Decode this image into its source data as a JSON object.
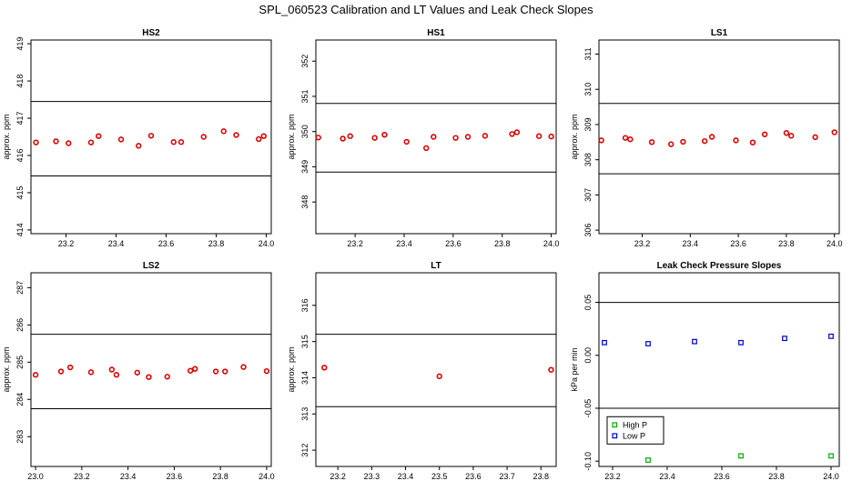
{
  "figure_title": "SPL_060523  Calibration and LT Values and Leak Check Slopes",
  "chart_data": [
    {
      "type": "scatter",
      "title": "HS2",
      "ylabel": "approx. ppm",
      "xlim": [
        23.06,
        24.02
      ],
      "ylim": [
        413.9,
        419.1
      ],
      "xticks": [
        "23.2",
        "23.4",
        "23.6",
        "23.8",
        "24.0"
      ],
      "yticks": [
        "414",
        "415",
        "416",
        "417",
        "418",
        "419"
      ],
      "hlines": [
        417.45,
        415.45
      ],
      "series": [
        {
          "name": "values",
          "color": "#dd0000",
          "x": [
            23.08,
            23.16,
            23.21,
            23.3,
            23.33,
            23.42,
            23.49,
            23.54,
            23.63,
            23.66,
            23.75,
            23.83,
            23.88,
            23.97,
            23.99
          ],
          "y": [
            416.35,
            416.38,
            416.33,
            416.35,
            416.52,
            416.43,
            416.26,
            416.53,
            416.36,
            416.36,
            416.5,
            416.65,
            416.55,
            416.44,
            416.52
          ]
        }
      ]
    },
    {
      "type": "scatter",
      "title": "HS1",
      "ylabel": "approx. ppm",
      "xlim": [
        23.04,
        24.02
      ],
      "ylim": [
        347.1,
        352.6
      ],
      "xticks": [
        "23.2",
        "23.4",
        "23.6",
        "23.8",
        "24.0"
      ],
      "yticks": [
        "348",
        "349",
        "350",
        "351",
        "352"
      ],
      "hlines": [
        350.8,
        348.85
      ],
      "series": [
        {
          "name": "values",
          "color": "#dd0000",
          "x": [
            23.05,
            23.15,
            23.18,
            23.28,
            23.32,
            23.41,
            23.49,
            23.52,
            23.61,
            23.66,
            23.73,
            23.84,
            23.86,
            23.95,
            24.0
          ],
          "y": [
            349.83,
            349.8,
            349.87,
            349.82,
            349.91,
            349.71,
            349.53,
            349.85,
            349.82,
            349.85,
            349.88,
            349.93,
            349.98,
            349.87,
            349.86
          ]
        }
      ]
    },
    {
      "type": "scatter",
      "title": "LS1",
      "ylabel": "approx. ppm",
      "xlim": [
        23.02,
        24.02
      ],
      "ylim": [
        305.9,
        311.4
      ],
      "xticks": [
        "23.2",
        "23.4",
        "23.6",
        "23.8",
        "24.0"
      ],
      "yticks": [
        "306",
        "307",
        "308",
        "309",
        "310",
        "311"
      ],
      "hlines": [
        309.6,
        307.6
      ],
      "series": [
        {
          "name": "values",
          "color": "#dd0000",
          "x": [
            23.03,
            23.13,
            23.15,
            23.24,
            23.32,
            23.37,
            23.46,
            23.49,
            23.59,
            23.66,
            23.71,
            23.8,
            23.82,
            23.92,
            24.0
          ],
          "y": [
            308.55,
            308.62,
            308.58,
            308.5,
            308.44,
            308.51,
            308.53,
            308.65,
            308.55,
            308.49,
            308.72,
            308.76,
            308.68,
            308.64,
            308.78
          ]
        }
      ]
    },
    {
      "type": "scatter",
      "title": "LS2",
      "ylabel": "approx. ppm",
      "xlim": [
        22.98,
        24.02
      ],
      "ylim": [
        282.2,
        287.4
      ],
      "xticks": [
        "23.0",
        "23.2",
        "23.4",
        "23.6",
        "23.8",
        "24.0"
      ],
      "yticks": [
        "283",
        "284",
        "285",
        "286",
        "287"
      ],
      "hlines": [
        285.75,
        283.75
      ],
      "series": [
        {
          "name": "values",
          "color": "#dd0000",
          "x": [
            23.0,
            23.11,
            23.15,
            23.24,
            23.33,
            23.35,
            23.44,
            23.49,
            23.57,
            23.67,
            23.69,
            23.78,
            23.82,
            23.9,
            24.0
          ],
          "y": [
            284.66,
            284.75,
            284.86,
            284.73,
            284.8,
            284.66,
            284.72,
            284.6,
            284.61,
            284.77,
            284.82,
            284.75,
            284.75,
            284.87,
            284.76
          ]
        }
      ]
    },
    {
      "type": "scatter",
      "title": "LT",
      "ylabel": "approx. ppm",
      "xlim": [
        23.135,
        23.845
      ],
      "ylim": [
        311.55,
        316.9
      ],
      "xticks": [
        "23.2",
        "23.3",
        "23.4",
        "23.5",
        "23.6",
        "23.7",
        "23.8"
      ],
      "yticks": [
        "312",
        "313",
        "314",
        "315",
        "316"
      ],
      "hlines": [
        315.2,
        313.2
      ],
      "series": [
        {
          "name": "values",
          "color": "#dd0000",
          "x": [
            23.16,
            23.5,
            23.83
          ],
          "y": [
            314.28,
            314.04,
            314.22
          ]
        }
      ]
    },
    {
      "type": "scatter",
      "title": "Leak Check Pressure Slopes",
      "ylabel": "kPa per min",
      "xlim": [
        23.15,
        24.03
      ],
      "ylim": [
        -0.105,
        0.078
      ],
      "xticks": [
        "23.2",
        "23.4",
        "23.6",
        "23.8",
        "24.0"
      ],
      "yticks": [
        "-0.10",
        "-0.05",
        "0.00",
        "0.05"
      ],
      "hlines": [
        0.05,
        -0.05
      ],
      "legend": "bottom-left",
      "series": [
        {
          "name": "High P",
          "color": "#00aa00",
          "x": [
            23.33,
            23.67,
            24.0
          ],
          "y": [
            -0.099,
            -0.095,
            -0.095
          ]
        },
        {
          "name": "Low P",
          "color": "#0000cc",
          "x": [
            23.17,
            23.33,
            23.5,
            23.67,
            23.83,
            24.0
          ],
          "y": [
            0.012,
            0.011,
            0.013,
            0.012,
            0.016,
            0.018
          ]
        }
      ]
    }
  ]
}
